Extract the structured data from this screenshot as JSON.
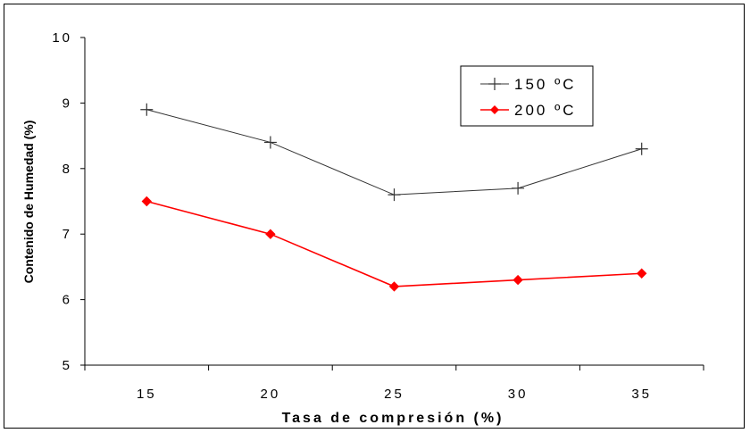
{
  "chart_data": {
    "type": "line",
    "title": "",
    "xlabel": "Tasa de compresión  (%)",
    "ylabel": "Contenido de Humedad (%)",
    "categories": [
      "15",
      "20",
      "25",
      "30",
      "35"
    ],
    "y_ticks": [
      "5",
      "6",
      "7",
      "8",
      "9",
      "10"
    ],
    "ylim": [
      5,
      10
    ],
    "grid": false,
    "legend_position": "top-right",
    "series": [
      {
        "name": "150 ºC",
        "values": [
          8.9,
          8.4,
          7.6,
          7.7,
          8.3
        ],
        "color": "#333333",
        "marker": "plus"
      },
      {
        "name": "200 ºC",
        "values": [
          7.5,
          7.0,
          6.2,
          6.3,
          6.4
        ],
        "color": "#ff0000",
        "marker": "diamond"
      }
    ]
  }
}
